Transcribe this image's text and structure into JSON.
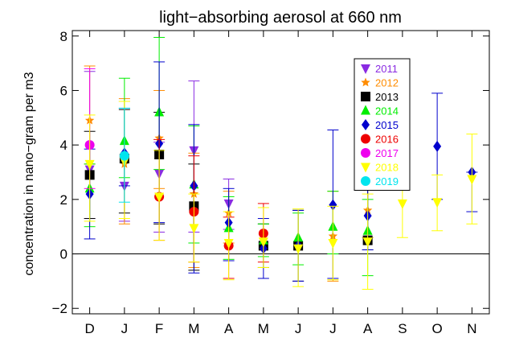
{
  "chart_data": {
    "type": "scatter",
    "title": "light−absorbing aerosol at 660 nm",
    "ylabel": "concentration in   nano−gram per m3",
    "xlabel": "",
    "categories": [
      "D",
      "J",
      "F",
      "M",
      "A",
      "M",
      "J",
      "J",
      "A",
      "S",
      "O",
      "N"
    ],
    "ylim": [
      -2.2,
      8.2
    ],
    "yticks": [
      -2,
      0,
      2,
      4,
      6,
      8
    ],
    "ytick_labels": [
      "−2",
      "0",
      "2",
      "4",
      "6",
      "8"
    ],
    "zero_line": true,
    "grid": false,
    "legend_position": "top-right",
    "series": [
      {
        "name": "2011",
        "color": "#8a2be2",
        "marker": "triangle-down",
        "points": [
          {
            "x": 0,
            "y": 3.1,
            "lo": 1.3,
            "hi": 6.7
          },
          {
            "x": 1,
            "y": 2.5,
            "lo": 1.2,
            "hi": 5.6
          },
          {
            "x": 2,
            "y": 2.95,
            "lo": 0.8,
            "hi": 4.1
          },
          {
            "x": 3,
            "y": 3.8,
            "lo": 0.8,
            "hi": 6.35
          },
          {
            "x": 4,
            "y": 1.85,
            "lo": 0.9,
            "hi": 2.75
          }
        ]
      },
      {
        "name": "2012",
        "color": "#ff8c00",
        "marker": "star",
        "points": [
          {
            "x": 0,
            "y": 4.9,
            "lo": 3.3,
            "hi": 6.9
          },
          {
            "x": 1,
            "y": 3.3,
            "lo": 1.1,
            "hi": 5.7
          },
          {
            "x": 2,
            "y": 4.25,
            "lo": 2.4,
            "hi": 6.0
          },
          {
            "x": 3,
            "y": 2.2,
            "lo": -0.5,
            "hi": 3.7
          },
          {
            "x": 4,
            "y": 1.5,
            "lo": 0.4,
            "hi": 2.3
          },
          {
            "x": 7,
            "y": 0.65,
            "lo": -1.0,
            "hi": 2.3
          },
          {
            "x": 8,
            "y": 1.6,
            "lo": 0.6,
            "hi": 2.4
          }
        ]
      },
      {
        "name": "2013",
        "color": "#000000",
        "marker": "square",
        "points": [
          {
            "x": 0,
            "y": 2.9,
            "lo": 1.3,
            "hi": 4.5
          },
          {
            "x": 1,
            "y": 3.5,
            "lo": 1.5,
            "hi": 5.3
          },
          {
            "x": 2,
            "y": 3.65,
            "lo": 1.1,
            "hi": 5.2
          },
          {
            "x": 3,
            "y": 1.75,
            "lo": -0.6,
            "hi": 3.3
          },
          {
            "x": 5,
            "y": 0.3,
            "lo": -0.5,
            "hi": 1.1
          },
          {
            "x": 6,
            "y": 0.3,
            "lo": -1.0,
            "hi": 1.6
          },
          {
            "x": 8,
            "y": 0.5,
            "lo": 0.15,
            "hi": 2.5
          }
        ]
      },
      {
        "name": "2014",
        "color": "#00ee00",
        "marker": "triangle-up",
        "points": [
          {
            "x": 0,
            "y": 2.4,
            "lo": 1.0,
            "hi": 3.3
          },
          {
            "x": 1,
            "y": 4.15,
            "lo": 2.8,
            "hi": 6.45
          },
          {
            "x": 2,
            "y": 5.2,
            "lo": 3.1,
            "hi": 7.95
          },
          {
            "x": 3,
            "y": 2.55,
            "lo": 0.4,
            "hi": 4.7
          },
          {
            "x": 4,
            "y": 0.95,
            "lo": -0.2,
            "hi": 2.1
          },
          {
            "x": 5,
            "y": 0.5,
            "lo": -0.1,
            "hi": 1.1
          },
          {
            "x": 6,
            "y": 0.6,
            "lo": -0.4,
            "hi": 1.5
          },
          {
            "x": 7,
            "y": 1.0,
            "lo": 0.0,
            "hi": 2.3
          },
          {
            "x": 8,
            "y": 0.85,
            "lo": -0.8,
            "hi": 2.0
          }
        ]
      },
      {
        "name": "2015",
        "color": "#0000cd",
        "marker": "diamond",
        "points": [
          {
            "x": 0,
            "y": 2.2,
            "lo": 0.55,
            "hi": 3.85
          },
          {
            "x": 1,
            "y": 3.7,
            "lo": 2.5,
            "hi": 5.35
          },
          {
            "x": 2,
            "y": 4.05,
            "lo": 1.15,
            "hi": 7.05
          },
          {
            "x": 3,
            "y": 2.5,
            "lo": -0.7,
            "hi": 4.75
          },
          {
            "x": 4,
            "y": 1.15,
            "lo": -0.25,
            "hi": 2.4
          },
          {
            "x": 5,
            "y": 0.2,
            "lo": -0.9,
            "hi": 1.3
          },
          {
            "x": 6,
            "y": 0.3,
            "lo": -1.0,
            "hi": 1.6
          },
          {
            "x": 7,
            "y": 1.8,
            "lo": -0.9,
            "hi": 4.55
          },
          {
            "x": 8,
            "y": 1.4,
            "lo": 0.15,
            "hi": 2.6
          },
          {
            "x": 10,
            "y": 3.95,
            "lo": 2.0,
            "hi": 5.9
          },
          {
            "x": 11,
            "y": 3.0,
            "lo": 1.55,
            "hi": 3.0
          }
        ]
      },
      {
        "name": "2016",
        "color": "#ee0000",
        "marker": "circle",
        "points": [
          {
            "x": 2,
            "y": 2.1,
            "lo": 0.5,
            "hi": 4.2
          },
          {
            "x": 3,
            "y": 1.55,
            "lo": -0.3,
            "hi": 3.6
          },
          {
            "x": 4,
            "y": 0.3,
            "lo": -0.9,
            "hi": 1.35
          },
          {
            "x": 5,
            "y": 0.75,
            "lo": -0.3,
            "hi": 1.85
          }
        ]
      },
      {
        "name": "2017",
        "color": "#ee00ee",
        "marker": "circle",
        "points": [
          {
            "x": 0,
            "y": 4.0,
            "lo": 2.4,
            "hi": 6.8
          }
        ]
      },
      {
        "name": "2018",
        "color": "#ffff00",
        "marker": "triangle-down",
        "points": [
          {
            "x": 0,
            "y": 3.3,
            "lo": 1.2,
            "hi": 5.1
          },
          {
            "x": 1,
            "y": 3.4,
            "lo": 1.3,
            "hi": 5.6
          },
          {
            "x": 2,
            "y": 2.1,
            "lo": 0.5,
            "hi": 3.8
          },
          {
            "x": 3,
            "y": 0.95,
            "lo": -0.3,
            "hi": 2.2
          },
          {
            "x": 4,
            "y": 0.4,
            "lo": -0.95,
            "hi": 1.55
          },
          {
            "x": 5,
            "y": 0.45,
            "lo": -0.5,
            "hi": 1.7
          },
          {
            "x": 6,
            "y": 0.2,
            "lo": -1.2,
            "hi": 1.65
          },
          {
            "x": 7,
            "y": 0.4,
            "lo": -0.95,
            "hi": 1.75
          },
          {
            "x": 8,
            "y": 0.45,
            "lo": -1.3,
            "hi": 2.2
          },
          {
            "x": 9,
            "y": 1.85,
            "lo": 0.6,
            "hi": 3.15
          },
          {
            "x": 10,
            "y": 1.9,
            "lo": 0.85,
            "hi": 2.9
          },
          {
            "x": 11,
            "y": 2.75,
            "lo": 1.1,
            "hi": 4.4
          }
        ]
      },
      {
        "name": "2019",
        "color": "#00e5ee",
        "marker": "circle",
        "points": [
          {
            "x": 1,
            "y": 3.6,
            "lo": 1.9,
            "hi": 5.35
          }
        ]
      }
    ]
  }
}
